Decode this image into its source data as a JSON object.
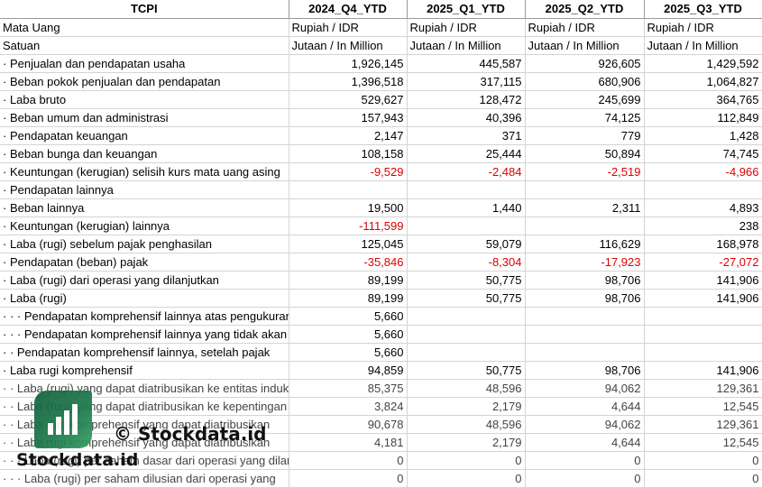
{
  "header": {
    "corner": "TCPI",
    "periods": [
      "2024_Q4_YTD",
      "2025_Q1_YTD",
      "2025_Q2_YTD",
      "2025_Q3_YTD"
    ]
  },
  "meta_rows": [
    {
      "label": "Mata Uang",
      "values": [
        "Rupiah / IDR",
        "Rupiah / IDR",
        "Rupiah / IDR",
        "Rupiah / IDR"
      ]
    },
    {
      "label": "Satuan",
      "values": [
        "Jutaan / In Million",
        "Jutaan / In Million",
        "Jutaan / In Million",
        "Jutaan / In Million"
      ]
    }
  ],
  "rows": [
    {
      "label": "· Penjualan dan pendapatan usaha",
      "values": [
        "1,926,145",
        "445,587",
        "926,605",
        "1,429,592"
      ]
    },
    {
      "label": "· Beban pokok penjualan dan pendapatan",
      "values": [
        "1,396,518",
        "317,115",
        "680,906",
        "1,064,827"
      ]
    },
    {
      "label": "· Laba bruto",
      "values": [
        "529,627",
        "128,472",
        "245,699",
        "364,765"
      ]
    },
    {
      "label": "· Beban umum dan administrasi",
      "values": [
        "157,943",
        "40,396",
        "74,125",
        "112,849"
      ]
    },
    {
      "label": "· Pendapatan keuangan",
      "values": [
        "2,147",
        "371",
        "779",
        "1,428"
      ]
    },
    {
      "label": "· Beban bunga dan keuangan",
      "values": [
        "108,158",
        "25,444",
        "50,894",
        "74,745"
      ]
    },
    {
      "label": "· Keuntungan (kerugian) selisih kurs mata uang asing",
      "values": [
        "-9,529",
        "-2,484",
        "-2,519",
        "-4,966"
      ]
    },
    {
      "label": "· Pendapatan lainnya",
      "values": [
        "",
        "",
        "",
        ""
      ]
    },
    {
      "label": "· Beban lainnya",
      "values": [
        "19,500",
        "1,440",
        "2,311",
        "4,893"
      ]
    },
    {
      "label": "· Keuntungan (kerugian) lainnya",
      "values": [
        "-111,599",
        "",
        "",
        "238"
      ]
    },
    {
      "label": "· Laba (rugi) sebelum pajak penghasilan",
      "values": [
        "125,045",
        "59,079",
        "116,629",
        "168,978"
      ]
    },
    {
      "label": "· Pendapatan (beban) pajak",
      "values": [
        "-35,846",
        "-8,304",
        "-17,923",
        "-27,072"
      ]
    },
    {
      "label": "· Laba (rugi) dari operasi yang dilanjutkan",
      "values": [
        "89,199",
        "50,775",
        "98,706",
        "141,906"
      ]
    },
    {
      "label": "· Laba (rugi)",
      "values": [
        "89,199",
        "50,775",
        "98,706",
        "141,906"
      ]
    },
    {
      "label": "· · · Pendapatan komprehensif lainnya atas pengukuran",
      "values": [
        "5,660",
        "",
        "",
        ""
      ]
    },
    {
      "label": "· · · Pendapatan komprehensif lainnya yang tidak akan",
      "values": [
        "5,660",
        "",
        "",
        ""
      ]
    },
    {
      "label": "· · Pendapatan komprehensif lainnya, setelah pajak",
      "values": [
        "5,660",
        "",
        "",
        ""
      ]
    },
    {
      "label": "· Laba rugi komprehensif",
      "values": [
        "94,859",
        "50,775",
        "98,706",
        "141,906"
      ]
    },
    {
      "label": "· · Laba (rugi) yang dapat diatribusikan ke entitas induk",
      "values": [
        "85,375",
        "48,596",
        "94,062",
        "129,361"
      ]
    },
    {
      "label": "· · Laba (rugi) yang dapat diatribusikan ke kepentingan",
      "values": [
        "3,824",
        "2,179",
        "4,644",
        "12,545"
      ]
    },
    {
      "label": "· · Laba rugi komprehensif yang dapat diatribusikan",
      "values": [
        "90,678",
        "48,596",
        "94,062",
        "129,361"
      ]
    },
    {
      "label": "· · Laba rugi komprehensif yang dapat diatribusikan",
      "values": [
        "4,181",
        "2,179",
        "4,644",
        "12,545"
      ]
    },
    {
      "label": "· · · Laba (rugi) per saham dasar dari operasi yang dilanjutkan",
      "values": [
        "0",
        "0",
        "0",
        "0"
      ]
    },
    {
      "label": "· · · Laba (rugi) per saham dilusian dari operasi yang",
      "values": [
        "0",
        "0",
        "0",
        "0"
      ]
    }
  ],
  "watermark": {
    "copyright": "© Stockdata.id",
    "brand": "Stockdata.id",
    "logo_icon": "bar-chart-logo-icon",
    "logo_color": "#1d7a4c"
  },
  "colors": {
    "negative": "#e00000",
    "gridline": "#d4d4d4"
  }
}
